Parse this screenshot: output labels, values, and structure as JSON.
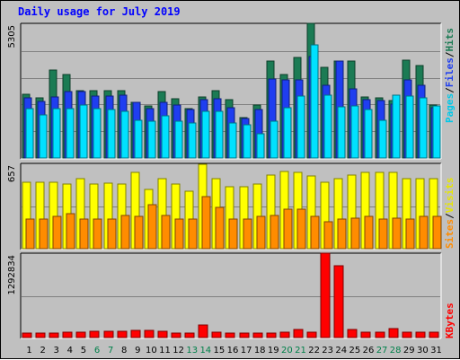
{
  "title": "Daily usage for July 2019",
  "chart_data": [
    {
      "type": "bar",
      "panel": "pages-files-hits",
      "categories": [
        "1",
        "2",
        "3",
        "4",
        "5",
        "6",
        "7",
        "8",
        "9",
        "10",
        "11",
        "12",
        "13",
        "14",
        "15",
        "16",
        "17",
        "18",
        "19",
        "20",
        "21",
        "22",
        "23",
        "24",
        "25",
        "26",
        "27",
        "28",
        "29",
        "30",
        "31"
      ],
      "weekend_days": [
        "6",
        "7",
        "13",
        "14",
        "20",
        "21",
        "27",
        "28"
      ],
      "y_tick_label": "5305",
      "ylim": [
        0,
        5305
      ],
      "series": [
        {
          "name": "Hits",
          "color": "#1b7b54",
          "values": [
            2520,
            2400,
            3500,
            3300,
            2670,
            2670,
            2670,
            2660,
            2210,
            2050,
            2640,
            2340,
            1960,
            2430,
            2670,
            2300,
            1610,
            2090,
            3830,
            3300,
            4000,
            5340,
            3590,
            3840,
            3860,
            2430,
            2380,
            2270,
            3880,
            3680,
            2100
          ]
        },
        {
          "name": "Files",
          "color": "#1f3ef0",
          "values": [
            2380,
            2260,
            2410,
            2620,
            2620,
            2440,
            2440,
            2480,
            2210,
            1950,
            2220,
            2100,
            1910,
            2310,
            2340,
            2010,
            1550,
            1930,
            3130,
            3110,
            3080,
            4030,
            2890,
            3850,
            2750,
            2320,
            2280,
            2130,
            3100,
            2900,
            2010
          ]
        },
        {
          "name": "Pages",
          "color": "#00e1ff",
          "values": [
            1960,
            1720,
            1960,
            1960,
            2100,
            1960,
            1910,
            1860,
            1510,
            1470,
            1670,
            1470,
            1400,
            1850,
            1860,
            1400,
            1310,
            970,
            1470,
            2000,
            2440,
            4470,
            2480,
            2030,
            2060,
            1910,
            1510,
            2510,
            2470,
            2400,
            2050
          ]
        }
      ]
    },
    {
      "type": "bar",
      "panel": "visits-sites",
      "categories": [
        "1",
        "2",
        "3",
        "4",
        "5",
        "6",
        "7",
        "8",
        "9",
        "10",
        "11",
        "12",
        "13",
        "14",
        "15",
        "16",
        "17",
        "18",
        "19",
        "20",
        "21",
        "22",
        "23",
        "24",
        "25",
        "26",
        "27",
        "28",
        "29",
        "30",
        "31"
      ],
      "y_tick_label": "657",
      "ylim": [
        0,
        657
      ],
      "series": [
        {
          "name": "Visits",
          "color": "#ffff00",
          "values": [
            515,
            515,
            515,
            500,
            547,
            500,
            508,
            500,
            595,
            460,
            547,
            500,
            445,
            656,
            547,
            485,
            485,
            500,
            570,
            598,
            595,
            567,
            515,
            547,
            575,
            595,
            595,
            595,
            547,
            547,
            547
          ]
        },
        {
          "name": "Sites",
          "color": "#ff8c00",
          "values": [
            232,
            232,
            250,
            270,
            232,
            232,
            232,
            260,
            250,
            340,
            260,
            232,
            232,
            405,
            322,
            232,
            232,
            250,
            258,
            305,
            305,
            250,
            208,
            232,
            240,
            250,
            232,
            240,
            232,
            250,
            250
          ]
        }
      ]
    },
    {
      "type": "bar",
      "panel": "kbytes",
      "categories": [
        "1",
        "2",
        "3",
        "4",
        "5",
        "6",
        "7",
        "8",
        "9",
        "10",
        "11",
        "12",
        "13",
        "14",
        "15",
        "16",
        "17",
        "18",
        "19",
        "20",
        "21",
        "22",
        "23",
        "24",
        "25",
        "26",
        "27",
        "28",
        "29",
        "30",
        "31"
      ],
      "y_tick_label": "1292834",
      "ylim": [
        0,
        1292834
      ],
      "series": [
        {
          "name": "KBytes",
          "color": "#ff0000",
          "values": [
            74000,
            74000,
            74000,
            80000,
            80000,
            95000,
            95000,
            95000,
            110000,
            110000,
            95000,
            74000,
            74000,
            190000,
            80000,
            74000,
            74000,
            74000,
            74000,
            80000,
            130000,
            80000,
            1300000,
            1110000,
            130000,
            80000,
            80000,
            140000,
            80000,
            80000,
            80000
          ]
        }
      ]
    }
  ],
  "legends": {
    "top": {
      "pages": "Pages",
      "sep1": "/",
      "files": "Files",
      "sep2": "/",
      "hits": "Hits"
    },
    "middle": {
      "sites": "Sites",
      "sep1": "/",
      "visits": "Visits"
    },
    "bottom": {
      "kbytes": "KBytes"
    }
  },
  "colors": {
    "background": "#c0c0c0",
    "plot_background": "#c0c0c0",
    "title": "#0000ff",
    "weekday_label": "#000000",
    "weekend_label": "#00804a"
  }
}
